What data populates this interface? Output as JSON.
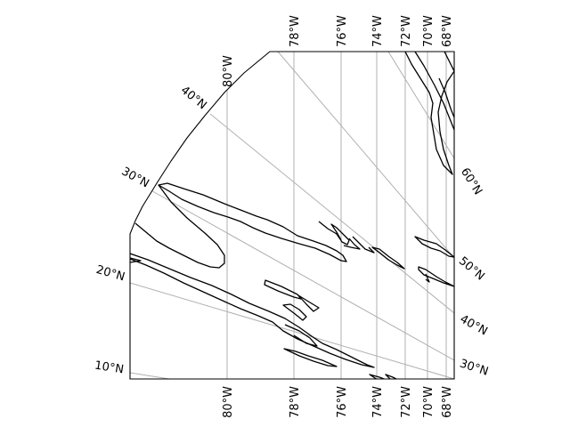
{
  "map": {
    "projection_hint": "oblique projection of western North Atlantic / eastern North America",
    "meridian_labels": [
      "80°W",
      "78°W",
      "76°W",
      "74°W",
      "72°W",
      "70°W",
      "68°W"
    ],
    "parallel_labels_left": [
      "40°N",
      "30°N",
      "20°N",
      "10°N"
    ],
    "parallel_labels_right": [
      "60°N",
      "50°N",
      "40°N",
      "30°N"
    ],
    "colors": {
      "grid": "#b0b0b0",
      "coastline": "#000000",
      "background": "#ffffff"
    }
  }
}
